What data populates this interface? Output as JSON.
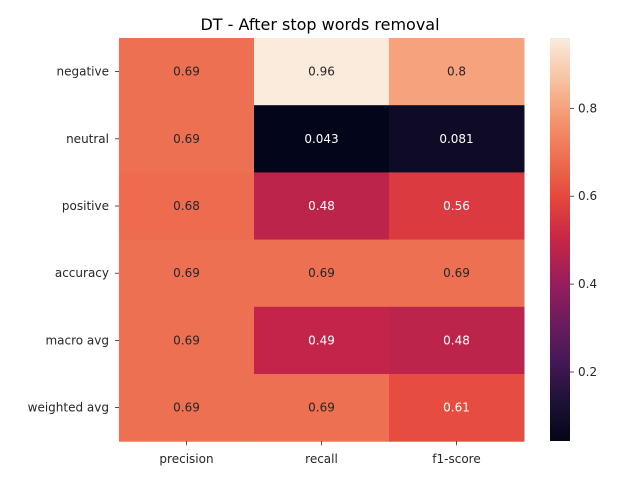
{
  "chart_data": {
    "type": "heatmap",
    "title": "DT - After stop words removal",
    "rows": [
      "negative",
      "neutral",
      "positive",
      "accuracy",
      "macro avg",
      "weighted avg"
    ],
    "columns": [
      "precision",
      "recall",
      "f1-score"
    ],
    "values": [
      [
        0.69,
        0.96,
        0.8
      ],
      [
        0.69,
        0.043,
        0.081
      ],
      [
        0.68,
        0.48,
        0.56
      ],
      [
        0.69,
        0.69,
        0.69
      ],
      [
        0.69,
        0.49,
        0.48
      ],
      [
        0.69,
        0.69,
        0.61
      ]
    ],
    "cell_labels": [
      [
        "0.69",
        "0.96",
        "0.8"
      ],
      [
        "0.69",
        "0.043",
        "0.081"
      ],
      [
        "0.68",
        "0.48",
        "0.56"
      ],
      [
        "0.69",
        "0.69",
        "0.69"
      ],
      [
        "0.69",
        "0.49",
        "0.48"
      ],
      [
        "0.69",
        "0.69",
        "0.61"
      ]
    ],
    "colorbar": {
      "colormap": "rocket",
      "range": [
        0.043,
        0.96
      ],
      "ticks": [
        0.2,
        0.4,
        0.6,
        0.8
      ]
    }
  }
}
